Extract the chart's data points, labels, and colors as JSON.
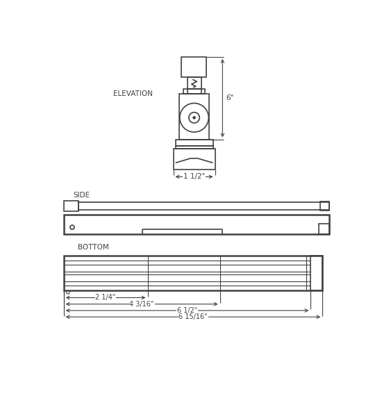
{
  "bg_color": "#ffffff",
  "line_color": "#404040",
  "elevation_label": "ELEVATION",
  "side_label": "SIDE",
  "bottom_label": "BOTTOM",
  "dim_6in": "6\"",
  "dim_1_5": "1 1/2\"",
  "dim_2_25": "2 1/4\"",
  "dim_4_3_16": "4 3/16\"",
  "dim_6_5": "6 1/2\"",
  "dim_6_15_16": "6 15/16\""
}
